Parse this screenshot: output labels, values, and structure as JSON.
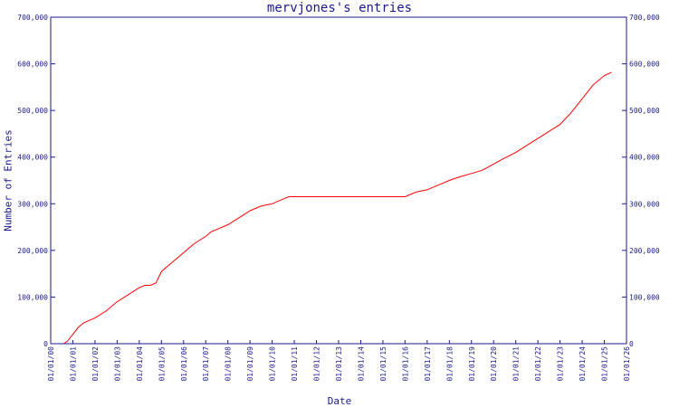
{
  "chart_data": {
    "type": "line",
    "title": "mervjones's entries",
    "xlabel": "Date",
    "ylabel": "Number of Entries",
    "x_ticks": [
      "01/01/00",
      "01/01/01",
      "01/01/02",
      "01/01/03",
      "01/01/04",
      "01/01/05",
      "01/01/06",
      "01/01/07",
      "01/01/08",
      "01/01/09",
      "01/01/10",
      "01/01/11",
      "01/01/12",
      "01/01/13",
      "01/01/14",
      "01/01/15",
      "01/01/16",
      "01/01/17",
      "01/01/18",
      "01/01/19",
      "01/01/20",
      "01/01/21",
      "01/01/22",
      "01/01/23",
      "01/01/24",
      "01/01/25",
      "01/01/26"
    ],
    "y_ticks": [
      "0",
      "100,000",
      "200,000",
      "300,000",
      "400,000",
      "500,000",
      "600,000",
      "700,000"
    ],
    "ylim": [
      0,
      700000
    ],
    "xlim": [
      "2000-01-01",
      "2026-01-01"
    ],
    "grid": false,
    "legend": "none",
    "colors": {
      "line": "#ff0000",
      "axis": "#1a1a8c",
      "text": "#1a1a8c"
    },
    "series": [
      {
        "x": [
          "2000-08-01",
          "2000-10-01",
          "2001-01-01",
          "2001-04-01",
          "2001-07-01",
          "2002-01-01",
          "2002-07-01",
          "2003-01-01",
          "2003-07-01",
          "2004-01-01",
          "2004-04-01",
          "2004-07-01",
          "2004-10-01",
          "2005-01-01",
          "2005-07-01",
          "2006-01-01",
          "2006-07-01",
          "2007-01-01",
          "2007-04-01",
          "2007-07-01",
          "2008-01-01",
          "2008-07-01",
          "2009-01-01",
          "2009-07-01",
          "2010-01-01",
          "2010-07-01",
          "2010-10-01",
          "2012-01-01",
          "2014-01-01",
          "2016-01-01",
          "2016-07-01",
          "2017-01-01",
          "2017-07-01",
          "2018-01-01",
          "2018-07-01",
          "2019-01-01",
          "2019-07-01",
          "2020-01-01",
          "2020-07-01",
          "2021-01-01",
          "2021-07-01",
          "2022-01-01",
          "2022-07-01",
          "2023-01-01",
          "2023-07-01",
          "2024-01-01",
          "2024-07-01",
          "2025-01-01",
          "2025-05-01"
        ],
        "y": [
          0,
          5000,
          20000,
          35000,
          45000,
          55000,
          70000,
          90000,
          105000,
          120000,
          125000,
          125000,
          130000,
          155000,
          175000,
          195000,
          215000,
          230000,
          240000,
          245000,
          255000,
          270000,
          285000,
          295000,
          300000,
          310000,
          315000,
          315000,
          315000,
          315000,
          325000,
          330000,
          340000,
          350000,
          358000,
          365000,
          372000,
          385000,
          398000,
          410000,
          425000,
          440000,
          455000,
          470000,
          495000,
          525000,
          555000,
          575000,
          582000
        ]
      }
    ]
  }
}
